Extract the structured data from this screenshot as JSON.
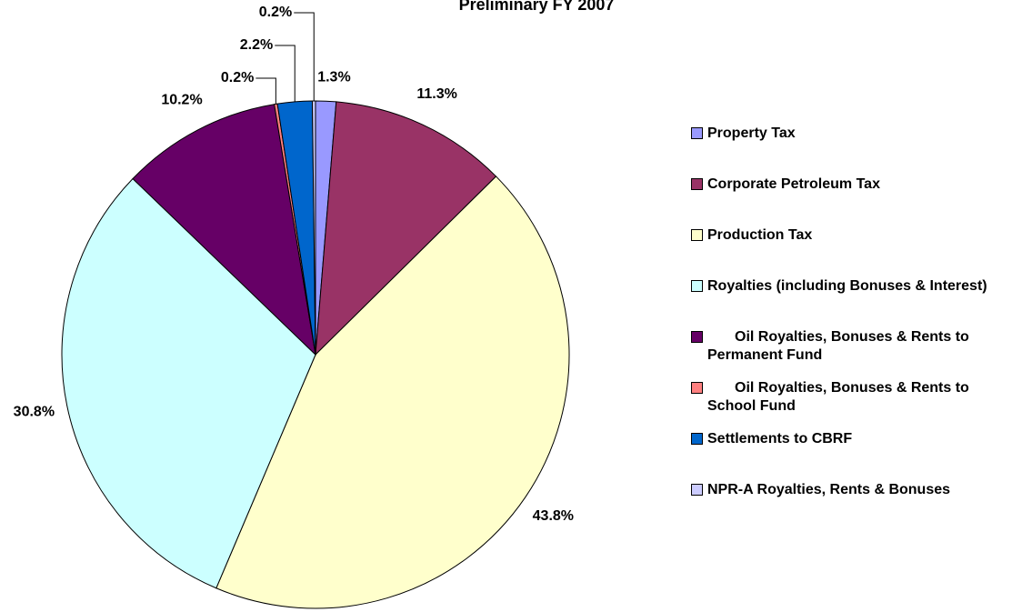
{
  "chart_data": {
    "type": "pie",
    "title": "Preliminary FY 2007",
    "categories": [
      "Property Tax",
      "Corporate Petroleum Tax",
      "Production Tax",
      "Royalties (including Bonuses & Interest)",
      "Oil Royalties, Bonuses & Rents to Permanent Fund",
      "Oil Royalties, Bonuses & Rents to School Fund",
      "Settlements to CBRF",
      "NPR-A Royalties, Rents & Bonuses"
    ],
    "values": [
      1.3,
      11.3,
      43.8,
      30.8,
      10.2,
      0.2,
      2.2,
      0.2
    ],
    "value_labels": [
      "1.3%",
      "11.3%",
      "43.8%",
      "30.8%",
      "10.2%",
      "0.2%",
      "2.2%",
      "0.2%"
    ],
    "colors": [
      "#9999ff",
      "#993366",
      "#ffffcc",
      "#ccffff",
      "#660066",
      "#ff8080",
      "#0066cc",
      "#ccccff"
    ],
    "legend": "right"
  }
}
